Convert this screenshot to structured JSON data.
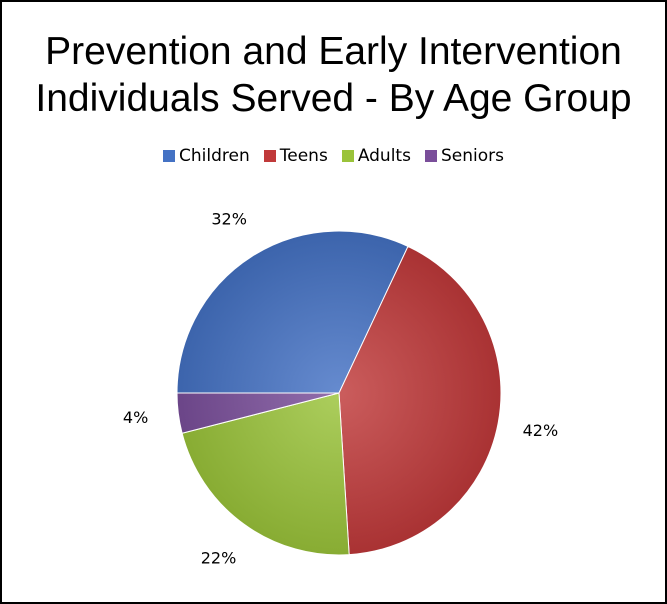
{
  "chart_data": {
    "type": "pie",
    "title_lines": [
      "Prevention and Early Intervention",
      "Individuals Served - By Age Group"
    ],
    "legend_position": "top",
    "categories": [
      "Children",
      "Teens",
      "Adults",
      "Seniors"
    ],
    "values": [
      32,
      42,
      22,
      4
    ],
    "data_labels": [
      "32%",
      "42%",
      "22%",
      "4%"
    ],
    "colors": [
      "#4472c4",
      "#c0393a",
      "#9ac33a",
      "#7a4e9a"
    ]
  }
}
